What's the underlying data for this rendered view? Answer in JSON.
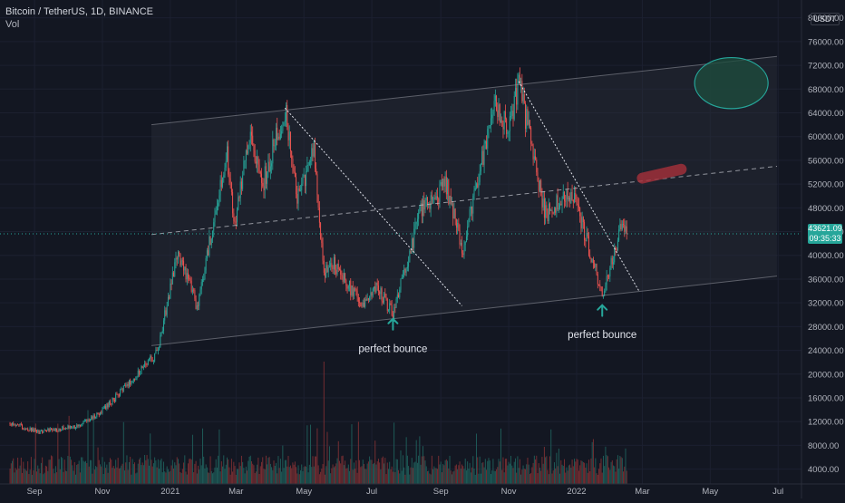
{
  "legend": {
    "symbol": "Bitcoin / TetherUS, 1D, BINANCE",
    "volume": "Vol"
  },
  "currency": "USDT",
  "last_price": {
    "value": "43621.09",
    "countdown": "09:35:33",
    "price": 43621
  },
  "colors": {
    "background": "#131722",
    "up": "#26a69a",
    "down": "#ef5350",
    "vol_up": "#1f5e5a",
    "vol_down": "#7a2f33",
    "axis_text": "#b2b5be",
    "channel": "#9598a1"
  },
  "chart_data": {
    "type": "candlestick",
    "x_axis": {
      "ticks": [
        "Sep",
        "Nov",
        "2021",
        "Mar",
        "May",
        "Jul",
        "Sep",
        "Nov",
        "2022",
        "Mar",
        "May",
        "Jul"
      ],
      "tick_dates": [
        "2020-09-01",
        "2020-11-01",
        "2021-01-01",
        "2021-03-01",
        "2021-05-01",
        "2021-07-01",
        "2021-09-01",
        "2021-11-01",
        "2022-01-01",
        "2022-03-01",
        "2022-05-01",
        "2022-07-01"
      ]
    },
    "y_axis": {
      "scale": "linear",
      "ticks": [
        4000,
        8000,
        12000,
        16000,
        20000,
        24000,
        28000,
        32000,
        36000,
        40000,
        44000,
        48000,
        52000,
        56000,
        60000,
        64000,
        68000,
        72000,
        76000,
        80000
      ],
      "tick_labels": [
        "4000.00",
        "8000.00",
        "12000.00",
        "16000.00",
        "20000.00",
        "24000.00",
        "28000.00",
        "32000.00",
        "36000.00",
        "40000.00",
        "44000.00",
        "48000.00",
        "52000.00",
        "56000.00",
        "60000.00",
        "64000.00",
        "68000.00",
        "72000.00",
        "76000.00",
        "80000.00"
      ],
      "ylim": [
        1500,
        83000
      ]
    },
    "price_path": [
      [
        "2020-08-10",
        11800
      ],
      [
        "2020-09-05",
        10200
      ],
      [
        "2020-10-10",
        11300
      ],
      [
        "2020-11-01",
        13800
      ],
      [
        "2020-11-25",
        18500
      ],
      [
        "2020-12-20",
        23500
      ],
      [
        "2021-01-08",
        40500
      ],
      [
        "2021-01-25",
        31500
      ],
      [
        "2021-02-21",
        57000
      ],
      [
        "2021-02-28",
        45000
      ],
      [
        "2021-03-13",
        61000
      ],
      [
        "2021-03-25",
        52000
      ],
      [
        "2021-04-14",
        64500
      ],
      [
        "2021-04-25",
        49000
      ],
      [
        "2021-05-10",
        58000
      ],
      [
        "2021-05-19",
        37000
      ],
      [
        "2021-05-25",
        39500
      ],
      [
        "2021-06-22",
        31500
      ],
      [
        "2021-07-05",
        35000
      ],
      [
        "2021-07-20",
        30000
      ],
      [
        "2021-08-14",
        47500
      ],
      [
        "2021-09-06",
        51800
      ],
      [
        "2021-09-21",
        41000
      ],
      [
        "2021-10-20",
        66000
      ],
      [
        "2021-11-01",
        61000
      ],
      [
        "2021-11-10",
        69000
      ],
      [
        "2021-12-04",
        47000
      ],
      [
        "2021-12-28",
        50500
      ],
      [
        "2022-01-22",
        35000
      ],
      [
        "2022-01-24",
        33500
      ],
      [
        "2022-02-05",
        41500
      ],
      [
        "2022-02-09",
        44500
      ],
      [
        "2022-02-15",
        43621
      ]
    ],
    "overlays": {
      "channel_upper": [
        [
          "2020-12-15",
          62000
        ],
        [
          "2022-06-30",
          73500
        ]
      ],
      "channel_lower": [
        [
          "2020-12-15",
          24800
        ],
        [
          "2022-06-30",
          36500
        ]
      ],
      "channel_mid": [
        [
          "2020-12-15",
          43500
        ],
        [
          "2022-06-30",
          55000
        ]
      ],
      "trendline_1": [
        [
          "2021-04-14",
          64800
        ],
        [
          "2021-09-20",
          31500
        ]
      ],
      "trendline_2": [
        [
          "2021-11-10",
          69300
        ],
        [
          "2022-02-26",
          34000
        ]
      ],
      "target_ellipse": {
        "center": [
          "2022-05-20",
          69000
        ],
        "rx_days": 33,
        "ry_price": 4300
      },
      "target_mark": [
        [
          "2022-03-01",
          53000
        ],
        [
          "2022-04-05",
          54500
        ]
      ],
      "last_price_line": 43621
    },
    "annotations": [
      {
        "text": "perfect bounce",
        "date": "2021-07-20",
        "price": 24300,
        "arrow_price": 28400
      },
      {
        "text": "perfect bounce",
        "date": "2022-01-24",
        "price": 26700,
        "arrow_price": 30700
      }
    ]
  }
}
